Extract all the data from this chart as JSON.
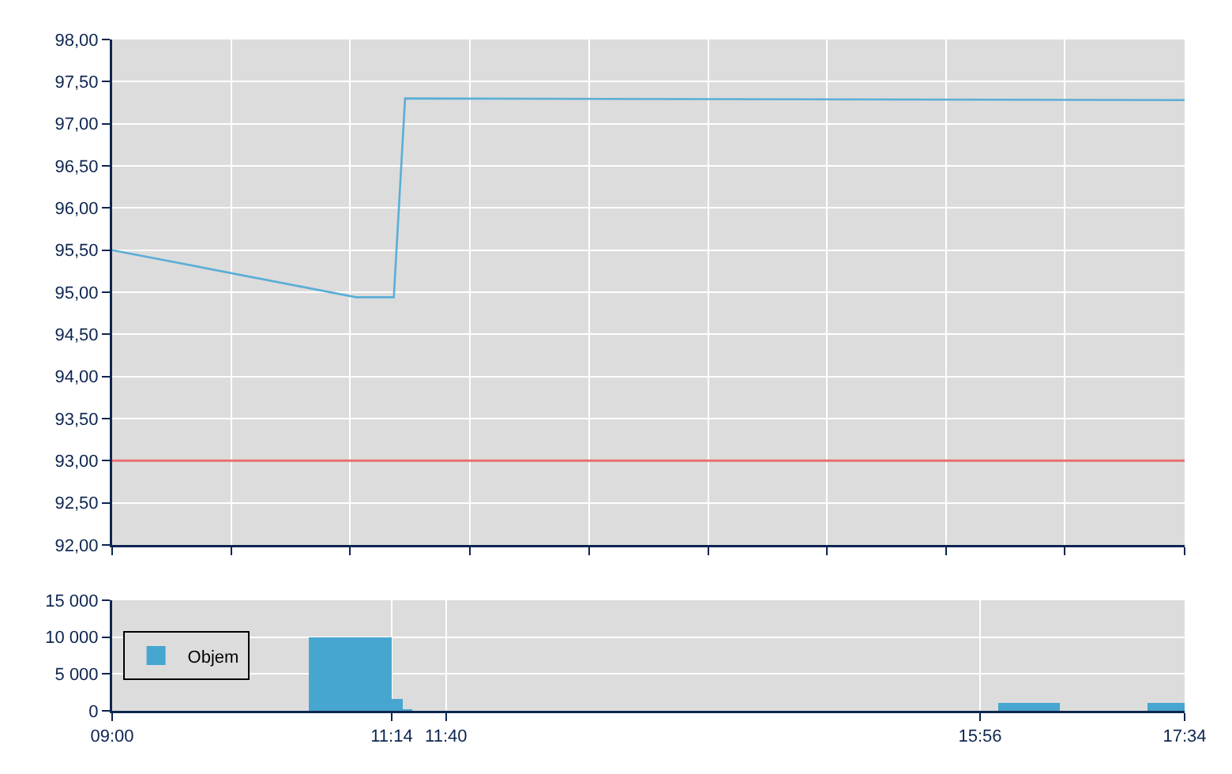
{
  "chart_data": [
    {
      "type": "line",
      "x": [
        9,
        10.95,
        11.25,
        11.34,
        17.567
      ],
      "series": [
        {
          "color": "#5aaed6",
          "values": [
            95.5,
            94.94,
            94.94,
            97.3,
            97.28
          ]
        }
      ],
      "xlim": [
        9,
        17.567
      ],
      "xticks": [
        {
          "value": 9,
          "label": null
        },
        {
          "value": 9.95,
          "label": null
        },
        {
          "value": 10.9,
          "label": null
        },
        {
          "value": 11.86,
          "label": null
        },
        {
          "value": 12.81,
          "label": null
        },
        {
          "value": 13.76,
          "label": null
        },
        {
          "value": 14.71,
          "label": null
        },
        {
          "value": 15.66,
          "label": null
        },
        {
          "value": 16.61,
          "label": null
        },
        {
          "value": 17.567,
          "label": null
        }
      ],
      "ylim": [
        92,
        98
      ],
      "yticks": [
        {
          "value": 92,
          "label": "92,00"
        },
        {
          "value": 92.5,
          "label": "92,50"
        },
        {
          "value": 93,
          "label": "93,00"
        },
        {
          "value": 93.5,
          "label": "93,50"
        },
        {
          "value": 94,
          "label": "94,00"
        },
        {
          "value": 94.5,
          "label": "94,50"
        },
        {
          "value": 95,
          "label": "95,00"
        },
        {
          "value": 95.5,
          "label": "95,50"
        },
        {
          "value": 96,
          "label": "96,00"
        },
        {
          "value": 96.5,
          "label": "96,50"
        },
        {
          "value": 97,
          "label": "97,00"
        },
        {
          "value": 97.5,
          "label": "97,50"
        },
        {
          "value": 98,
          "label": "98,00"
        }
      ],
      "ref_lines": [
        {
          "axis": "y",
          "value": 93,
          "color": "#e8706e"
        }
      ],
      "grid": true,
      "tick_labels": "y"
    },
    {
      "type": "histogram",
      "bins": [
        10.57,
        11.233,
        11.32,
        11.4,
        16.08,
        16.57,
        17.27,
        17.567
      ],
      "series": [
        {
          "name": "Objem",
          "color": "#47a6cf",
          "values": [
            10000,
            1600,
            200,
            0,
            1100,
            0,
            1100
          ]
        }
      ],
      "xlim": [
        9,
        17.567
      ],
      "xticks": [
        {
          "value": 9,
          "label": "09:00"
        },
        {
          "value": 11.233,
          "label": "11:14"
        },
        {
          "value": 11.667,
          "label": "11:40"
        },
        {
          "value": 15.933,
          "label": "15:56"
        },
        {
          "value": 17.567,
          "label": "17:34"
        }
      ],
      "ylim": [
        0,
        15000
      ],
      "yticks": [
        {
          "value": 0,
          "label": "0"
        },
        {
          "value": 5000,
          "label": "5 000"
        },
        {
          "value": 10000,
          "label": "10 000"
        },
        {
          "value": 15000,
          "label": "15 000"
        }
      ],
      "grid": true,
      "legend": "left"
    }
  ]
}
